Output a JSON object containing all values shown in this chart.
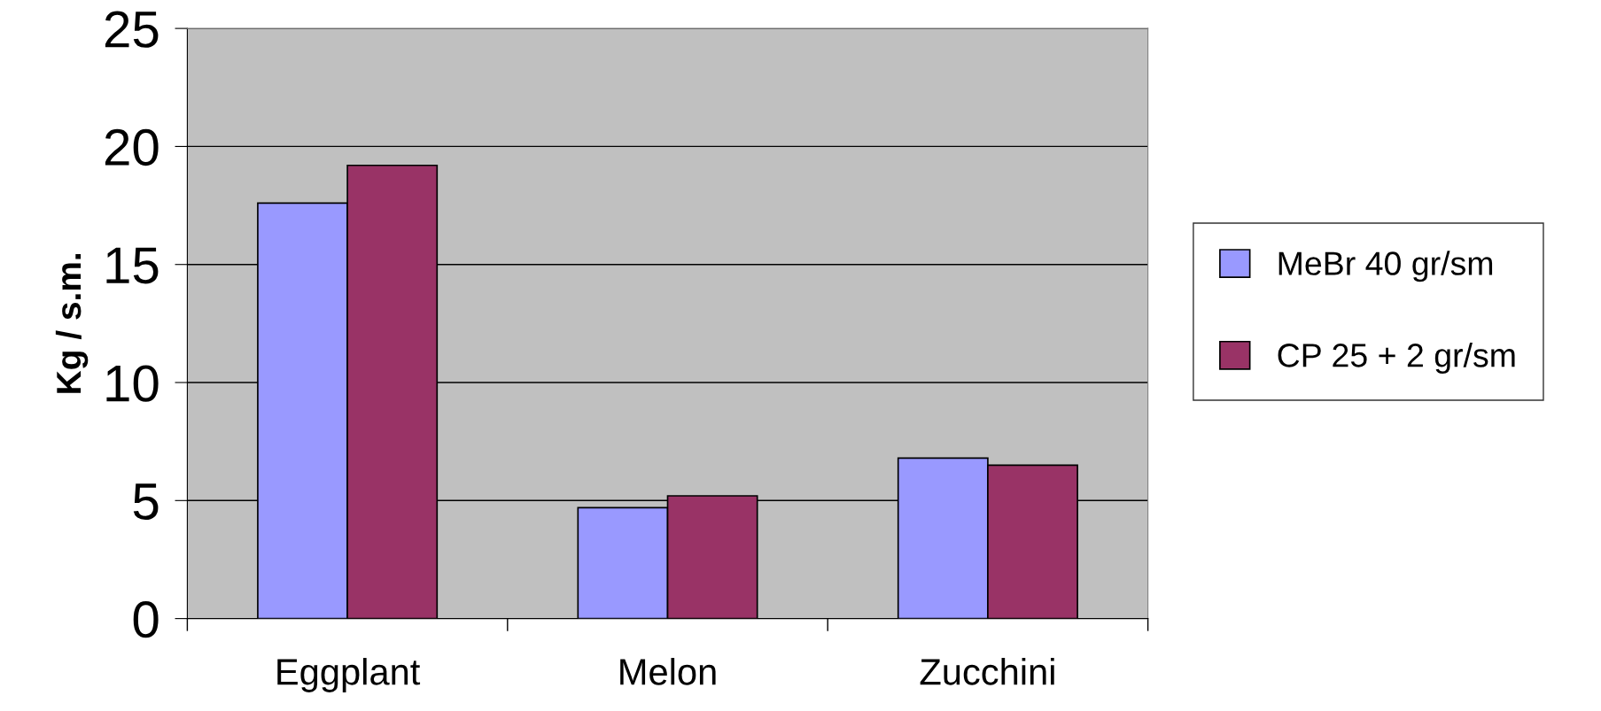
{
  "chart_data": {
    "type": "bar",
    "ylabel": "Kg / s.m.",
    "categories": [
      "Eggplant",
      "Melon",
      "Zucchini"
    ],
    "series": [
      {
        "name": "MeBr 40 gr/sm",
        "color": "#9999ff",
        "values": [
          17.6,
          4.7,
          6.8
        ]
      },
      {
        "name": "CP 25 + 2 gr/sm",
        "color": "#993366",
        "values": [
          19.2,
          5.2,
          6.5
        ]
      }
    ],
    "ylim": [
      0,
      25
    ],
    "yticks": [
      0,
      5,
      10,
      15,
      20,
      25
    ],
    "grid": "y",
    "legend": "right"
  }
}
